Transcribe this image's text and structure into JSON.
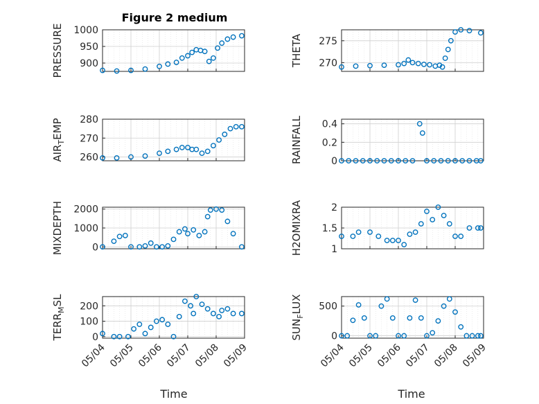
{
  "figure": {
    "title": "Figure 2 medium",
    "xlabel": "Time"
  },
  "style": {
    "marker_color": "#0072BD",
    "axis_color": "#262626",
    "grid_color": "#dfdfdf"
  },
  "chart_data": [
    {
      "type": "scatter",
      "ylabel": "PRESSURE",
      "xlim": [
        "05/04",
        "05/09"
      ],
      "ylim": [
        875,
        1000
      ],
      "yticks": [
        900,
        950,
        1000
      ],
      "xticks": [
        "05/04",
        "05/05",
        "05/06",
        "05/07",
        "05/08",
        "05/09"
      ],
      "grid": true,
      "x": [
        0.0,
        0.5,
        1.0,
        1.5,
        2.0,
        2.3,
        2.6,
        2.8,
        3.0,
        3.15,
        3.3,
        3.45,
        3.6,
        3.75,
        3.9,
        4.05,
        4.2,
        4.4,
        4.6,
        4.9
      ],
      "y": [
        878,
        876,
        878,
        882,
        890,
        897,
        902,
        915,
        922,
        932,
        940,
        938,
        935,
        905,
        915,
        945,
        960,
        972,
        978,
        982
      ]
    },
    {
      "type": "scatter",
      "ylabel": "THETA",
      "xlim": [
        "05/04",
        "05/09"
      ],
      "ylim": [
        268,
        277.5
      ],
      "yticks": [
        270,
        275
      ],
      "xticks": [
        "05/04",
        "05/05",
        "05/06",
        "05/07",
        "05/08",
        "05/09"
      ],
      "grid": true,
      "x": [
        0.0,
        0.5,
        1.0,
        1.5,
        2.0,
        2.2,
        2.35,
        2.5,
        2.7,
        2.9,
        3.1,
        3.3,
        3.45,
        3.55,
        3.65,
        3.75,
        3.85,
        4.0,
        4.2,
        4.5,
        4.9
      ],
      "y": [
        269,
        269.2,
        269.3,
        269.4,
        269.5,
        269.8,
        270.6,
        270,
        269.8,
        269.6,
        269.5,
        269.2,
        269.4,
        269,
        271,
        273,
        275,
        277,
        277.5,
        277.3,
        276.8
      ]
    },
    {
      "type": "scatter",
      "ylabel": "AIR_TEMP",
      "xlim": [
        "05/04",
        "05/09"
      ],
      "ylim": [
        258,
        280
      ],
      "yticks": [
        260,
        270,
        280
      ],
      "xticks": [
        "05/04",
        "05/05",
        "05/06",
        "05/07",
        "05/08",
        "05/09"
      ],
      "grid": true,
      "x": [
        0.0,
        0.5,
        1.0,
        1.5,
        2.0,
        2.3,
        2.6,
        2.8,
        3.0,
        3.15,
        3.3,
        3.5,
        3.7,
        3.9,
        4.1,
        4.3,
        4.5,
        4.7,
        4.9
      ],
      "y": [
        259.5,
        259.5,
        260,
        260.5,
        262,
        263,
        264,
        265,
        265,
        264,
        264,
        262,
        263,
        266,
        269,
        272,
        275,
        276,
        276
      ]
    },
    {
      "type": "scatter",
      "ylabel": "RAINFALL",
      "xlim": [
        "05/04",
        "05/09"
      ],
      "ylim": [
        0,
        0.45
      ],
      "yticks": [
        0,
        0.2,
        0.4
      ],
      "xticks": [
        "05/04",
        "05/05",
        "05/06",
        "05/07",
        "05/08",
        "05/09"
      ],
      "grid": true,
      "x": [
        0.0,
        0.25,
        0.5,
        0.75,
        1.0,
        1.25,
        1.5,
        1.75,
        2.0,
        2.25,
        2.5,
        2.75,
        2.85,
        3.0,
        3.25,
        3.5,
        3.75,
        4.0,
        4.25,
        4.5,
        4.75,
        4.9
      ],
      "y": [
        0,
        0,
        0,
        0,
        0,
        0,
        0,
        0,
        0,
        0,
        0,
        0.4,
        0.3,
        0,
        0,
        0,
        0,
        0,
        0,
        0,
        0,
        0
      ]
    },
    {
      "type": "scatter",
      "ylabel": "MIXDEPTH",
      "xlim": [
        "05/04",
        "05/09"
      ],
      "ylim": [
        -100,
        2100
      ],
      "yticks": [
        0,
        1000,
        2000
      ],
      "xticks": [
        "05/04",
        "05/05",
        "05/06",
        "05/07",
        "05/08",
        "05/09"
      ],
      "grid": true,
      "x": [
        0.0,
        0.4,
        0.6,
        0.8,
        1.0,
        1.3,
        1.5,
        1.7,
        1.9,
        2.1,
        2.3,
        2.5,
        2.7,
        2.9,
        3.0,
        3.2,
        3.4,
        3.6,
        3.7,
        3.8,
        4.0,
        4.2,
        4.4,
        4.6,
        4.9
      ],
      "y": [
        0,
        300,
        550,
        600,
        0,
        0,
        50,
        200,
        0,
        0,
        50,
        400,
        800,
        950,
        700,
        900,
        600,
        800,
        1600,
        1950,
        2000,
        1950,
        1350,
        700,
        0
      ]
    },
    {
      "type": "scatter",
      "ylabel": "H2OMIXRA",
      "xlim": [
        "05/04",
        "05/09"
      ],
      "ylim": [
        1,
        2
      ],
      "yticks": [
        1,
        1.5,
        2
      ],
      "xticks": [
        "05/04",
        "05/05",
        "05/06",
        "05/07",
        "05/08",
        "05/09"
      ],
      "grid": true,
      "x": [
        0.0,
        0.4,
        0.6,
        1.0,
        1.3,
        1.6,
        1.8,
        2.0,
        2.2,
        2.4,
        2.6,
        2.8,
        3.0,
        3.2,
        3.4,
        3.6,
        3.8,
        4.0,
        4.2,
        4.5,
        4.8,
        4.9
      ],
      "y": [
        1.3,
        1.3,
        1.4,
        1.4,
        1.3,
        1.2,
        1.2,
        1.2,
        1.1,
        1.35,
        1.4,
        1.6,
        1.9,
        1.7,
        2.0,
        1.8,
        1.6,
        1.3,
        1.3,
        1.5,
        1.5,
        1.5
      ]
    },
    {
      "type": "scatter",
      "ylabel": "TERR_MSL",
      "xlim": [
        "05/04",
        "05/09"
      ],
      "ylim": [
        -10,
        260
      ],
      "yticks": [
        0,
        100,
        200
      ],
      "xticks": [
        "05/04",
        "05/05",
        "05/06",
        "05/07",
        "05/08",
        "05/09"
      ],
      "grid": true,
      "x": [
        0.0,
        0.4,
        0.6,
        0.9,
        1.1,
        1.3,
        1.5,
        1.7,
        1.9,
        2.1,
        2.3,
        2.5,
        2.7,
        2.9,
        3.1,
        3.2,
        3.3,
        3.5,
        3.7,
        3.9,
        4.1,
        4.2,
        4.4,
        4.6,
        4.9
      ],
      "y": [
        20,
        0,
        0,
        0,
        50,
        80,
        20,
        60,
        100,
        110,
        80,
        0,
        130,
        230,
        200,
        150,
        260,
        210,
        180,
        150,
        130,
        170,
        180,
        150,
        150
      ]
    },
    {
      "type": "scatter",
      "ylabel": "SUN_FLUX",
      "xlim": [
        "05/04",
        "05/09"
      ],
      "ylim": [
        -40,
        660
      ],
      "yticks": [
        0,
        500
      ],
      "xticks": [
        "05/04",
        "05/05",
        "05/06",
        "05/07",
        "05/08",
        "05/09"
      ],
      "grid": true,
      "x": [
        0.0,
        0.2,
        0.4,
        0.6,
        0.8,
        1.0,
        1.2,
        1.4,
        1.6,
        1.8,
        2.0,
        2.2,
        2.4,
        2.6,
        2.8,
        3.0,
        3.2,
        3.4,
        3.6,
        3.8,
        4.0,
        4.2,
        4.4,
        4.6,
        4.8,
        4.9
      ],
      "y": [
        0,
        0,
        260,
        520,
        300,
        0,
        0,
        500,
        620,
        300,
        0,
        0,
        300,
        600,
        300,
        0,
        50,
        250,
        500,
        620,
        400,
        150,
        0,
        0,
        0,
        0
      ]
    }
  ]
}
